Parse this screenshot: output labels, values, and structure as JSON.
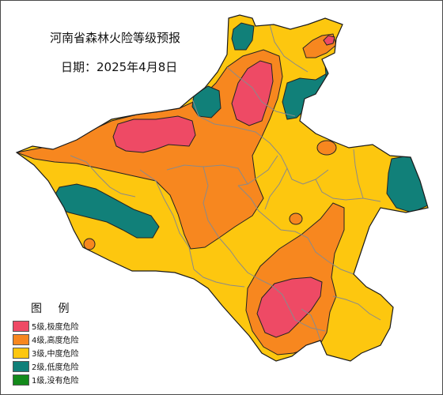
{
  "map": {
    "title": "河南省森林火险等级预报",
    "date_text": "日期：2025年4月8日"
  },
  "legend": {
    "title": "图 例",
    "items": [
      {
        "level": 5,
        "label": "5级,极度危险",
        "color": "#ee4a65"
      },
      {
        "level": 4,
        "label": "4级,高度危险",
        "color": "#f7871f"
      },
      {
        "level": 3,
        "label": "3级,中度危险",
        "color": "#fdc70f"
      },
      {
        "level": 2,
        "label": "2级,低度危险",
        "color": "#118079"
      },
      {
        "level": 1,
        "label": "1级,没有危险",
        "color": "#138a1b"
      }
    ]
  },
  "colors": {
    "level5": "#ee4a65",
    "level4": "#f7871f",
    "level3": "#fdc70f",
    "level2": "#118079",
    "boundary": "#1a1a1a",
    "city_boundary": "#8a8a8a"
  }
}
